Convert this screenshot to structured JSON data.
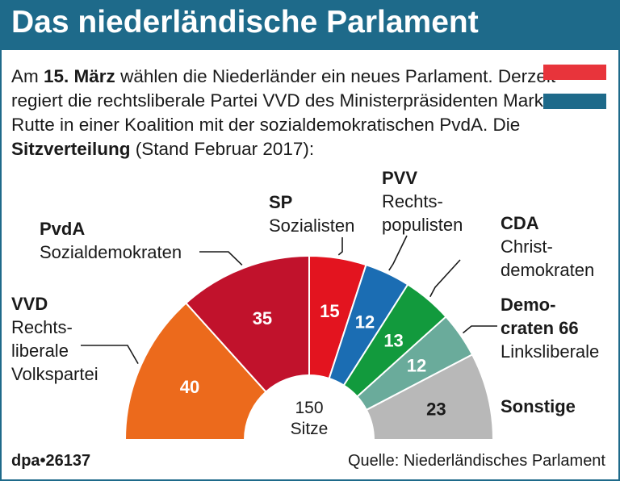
{
  "header": {
    "title": "Das niederländische Parlament"
  },
  "intro": {
    "part1": "Am ",
    "date_bold": "15. März",
    "part2": " wählen die Niederländer ein neues Parlament. Derzeit regiert die rechtsliberale Partei VVD des Minister­präsidenten Mark Rutte in einer Koalition mit der sozial­demokratischen PvdA. Die ",
    "bold2": "Sitzverteilung",
    "part3": " (Stand Februar 2017):"
  },
  "flag": {
    "colors": [
      "#e8343b",
      "#ffffff",
      "#1e6a8a"
    ]
  },
  "chart_data": {
    "type": "pie",
    "variant": "half-donut (parliament seats)",
    "center_label": [
      "150",
      "Sitze"
    ],
    "total": 150,
    "parties": [
      {
        "abbr": "VVD",
        "desc": [
          "Rechts-",
          "liberale",
          "Volkspartei"
        ],
        "seats": 40,
        "color": "#ec6a1c",
        "label_color": "#ffffff"
      },
      {
        "abbr": "PvdA",
        "desc": [
          "Sozialdemokraten"
        ],
        "seats": 35,
        "color": "#c1122c",
        "label_color": "#ffffff"
      },
      {
        "abbr": "SP",
        "desc": [
          "Sozialisten"
        ],
        "seats": 15,
        "color": "#e3141f",
        "label_color": "#ffffff"
      },
      {
        "abbr": "PVV",
        "desc": [
          "Rechts-",
          "populisten"
        ],
        "seats": 12,
        "color": "#1b6db3",
        "label_color": "#ffffff"
      },
      {
        "abbr": "CDA",
        "desc": [
          "Christ-",
          "demokraten"
        ],
        "seats": 13,
        "color": "#129a3d",
        "label_color": "#ffffff"
      },
      {
        "abbr": "Demo-",
        "abbr2": "craten 66",
        "desc": [
          "Linksliberale"
        ],
        "seats": 12,
        "color": "#6aab9b",
        "label_color": "#ffffff"
      },
      {
        "abbr": "Sonstige",
        "desc": [],
        "seats": 23,
        "color": "#b8b8b8",
        "label_color": "#1a1a1a"
      }
    ]
  },
  "footer": {
    "agency": "dpa•26137",
    "source": "Quelle: Niederländisches Parlament"
  }
}
